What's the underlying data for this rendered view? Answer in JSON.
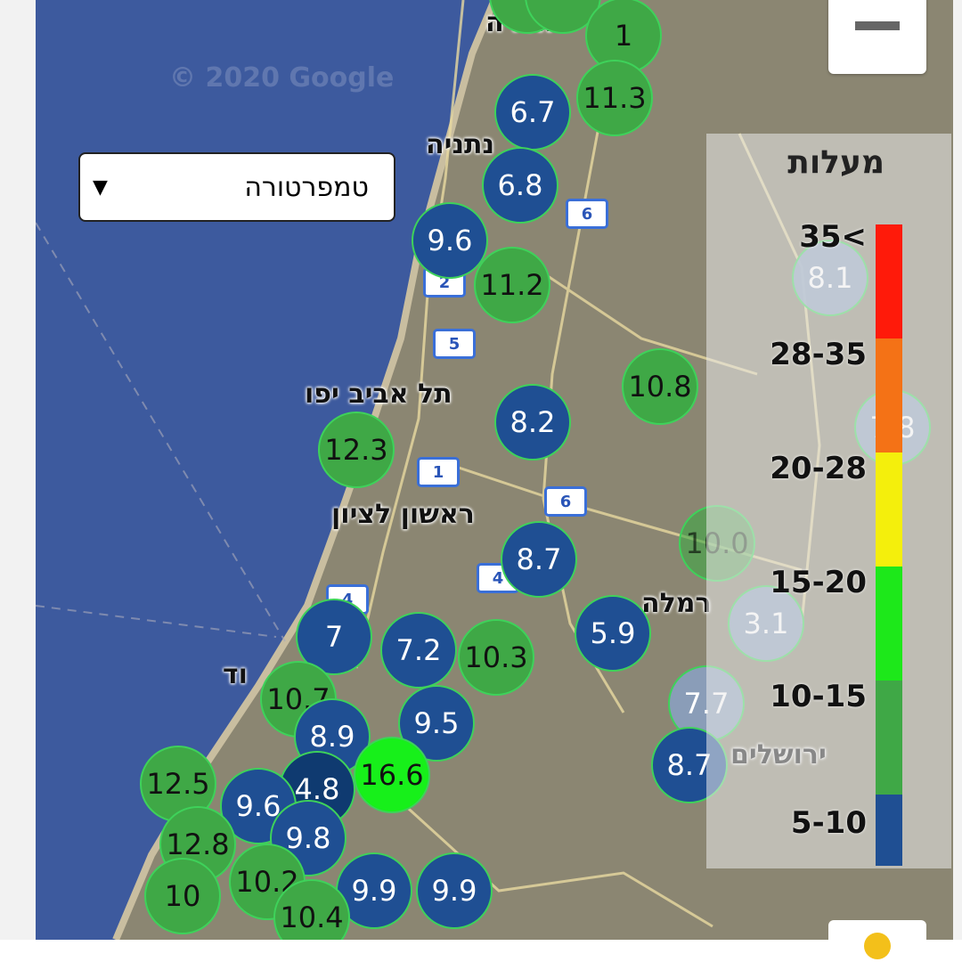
{
  "map": {
    "watermark": "© 2020 Google",
    "places": [
      "חדרה",
      "נתניה",
      "תל אביב יפו",
      "ראשון לציון",
      "רמלה",
      "ירושלים",
      "וד"
    ],
    "road_shields": [
      "6",
      "2",
      "5",
      "1",
      "6",
      "4",
      "4"
    ]
  },
  "colors": {
    "sea": "#3d5a9e",
    "land": "#8b8672",
    "blue": "#1f4f93",
    "green": "#3fa846",
    "lime": "#17f01a",
    "light": "#8aa0c0"
  },
  "control": {
    "dropdown_value": "טמפרטורה",
    "dropdown_arrow": "▼",
    "zoom_out_icon": "minus-icon"
  },
  "legend": {
    "title": "מעלות",
    "ranges": [
      {
        "label": "35<",
        "color": "#ff1a0a"
      },
      {
        "label": "28-35",
        "color": "#f47216"
      },
      {
        "label": "20-28",
        "color": "#f4ef0c"
      },
      {
        "label": "15-20",
        "color": "#1de81a"
      },
      {
        "label": "10-15",
        "color": "#3fa846"
      },
      {
        "label": "5-10",
        "color": "#1f4f93"
      }
    ]
  },
  "markers": [
    {
      "value": "",
      "cat": "green"
    },
    {
      "value": "",
      "cat": "green"
    },
    {
      "value": "1",
      "cat": "green"
    },
    {
      "value": "11.3",
      "cat": "green"
    },
    {
      "value": "6.7",
      "cat": "blue"
    },
    {
      "value": "6.8",
      "cat": "blue"
    },
    {
      "value": "9.6",
      "cat": "blue"
    },
    {
      "value": "11.2",
      "cat": "green"
    },
    {
      "value": "10.8",
      "cat": "green"
    },
    {
      "value": "12.3",
      "cat": "green"
    },
    {
      "value": "8.2",
      "cat": "blue"
    },
    {
      "value": "8.1",
      "cat": "light"
    },
    {
      "value": "7.8",
      "cat": "light"
    },
    {
      "value": "10.0",
      "cat": "fadegreen"
    },
    {
      "value": "8.7",
      "cat": "blue"
    },
    {
      "value": "5.9",
      "cat": "blue"
    },
    {
      "value": "7",
      "cat": "blue"
    },
    {
      "value": "7.2",
      "cat": "blue"
    },
    {
      "value": "10.3",
      "cat": "green"
    },
    {
      "value": "10.7",
      "cat": "green"
    },
    {
      "value": "3.1",
      "cat": "light"
    },
    {
      "value": "7.7",
      "cat": "light"
    },
    {
      "value": "8.9",
      "cat": "blue"
    },
    {
      "value": "9.5",
      "cat": "blue"
    },
    {
      "value": "8.7",
      "cat": "blue"
    },
    {
      "value": "4.8",
      "cat": "dark"
    },
    {
      "value": "16.6",
      "cat": "lime"
    },
    {
      "value": "9.6",
      "cat": "blue"
    },
    {
      "value": "9.8",
      "cat": "blue"
    },
    {
      "value": "9.9",
      "cat": "blue"
    },
    {
      "value": "9.9",
      "cat": "blue"
    },
    {
      "value": "12.5",
      "cat": "green"
    },
    {
      "value": "12.8",
      "cat": "green"
    },
    {
      "value": "10.2",
      "cat": "green"
    },
    {
      "value": "10",
      "cat": "green"
    },
    {
      "value": "10.4",
      "cat": "green"
    }
  ]
}
